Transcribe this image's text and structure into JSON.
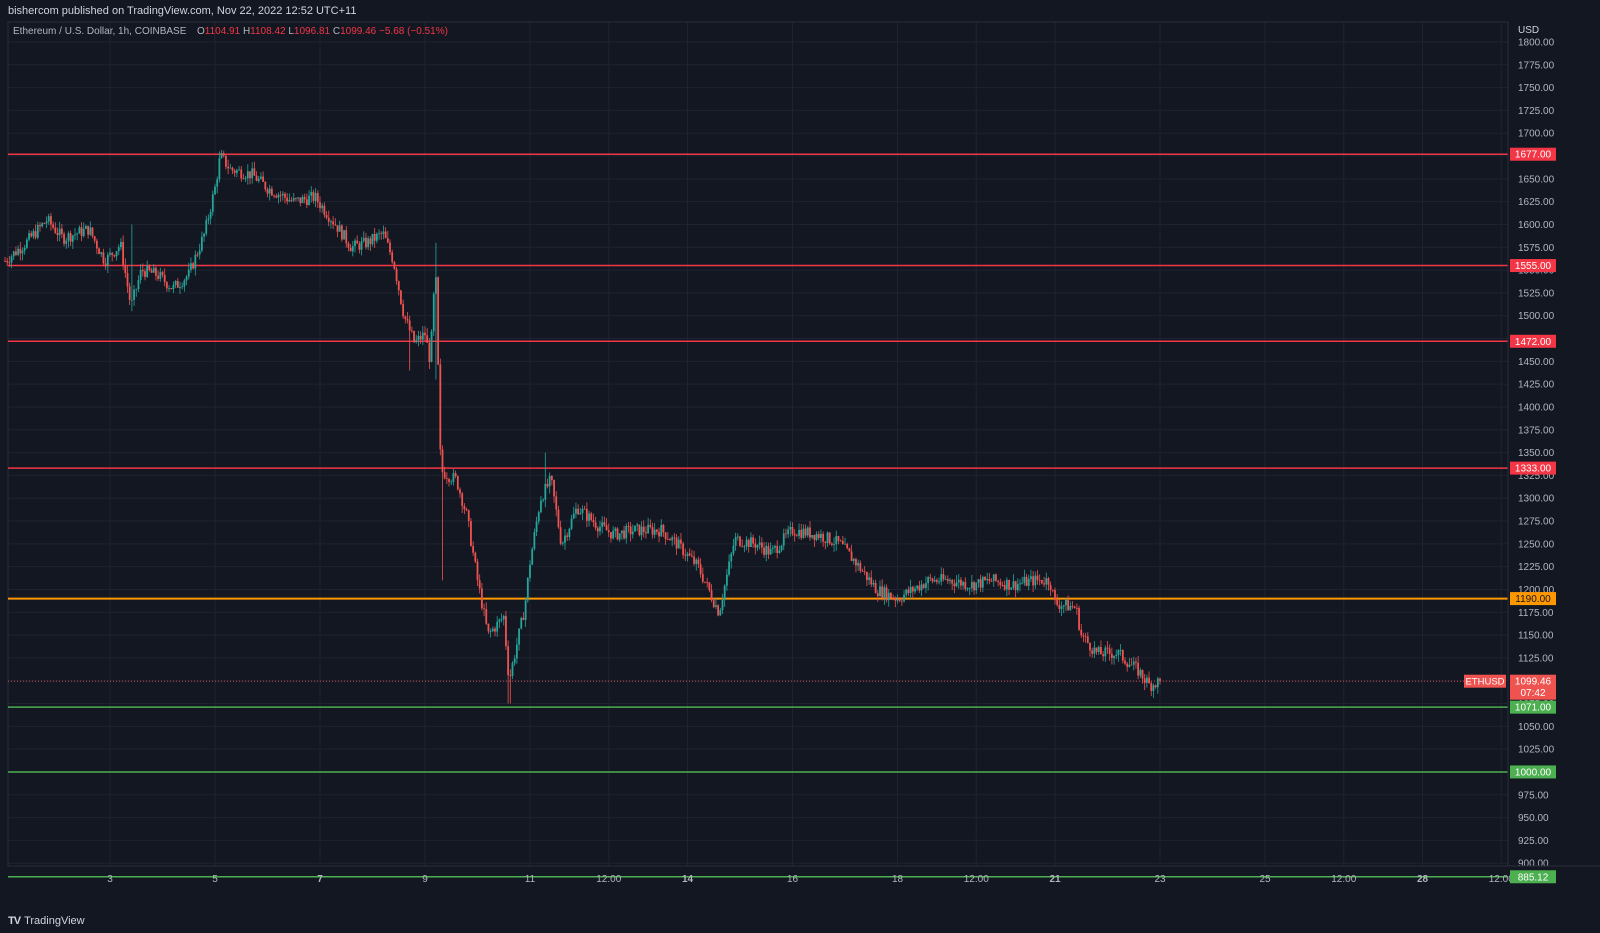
{
  "header": {
    "attribution": "bishercom published on TradingView.com, Nov 22, 2022 12:52 UTC+11"
  },
  "legend": {
    "symbol": "Ethereum / U.S. Dollar, 1h, COINBASE",
    "o_label": "O",
    "o": "1104.91",
    "h_label": "H",
    "h": "1108.42",
    "l_label": "L",
    "l": "1096.81",
    "c_label": "C",
    "c": "1099.46",
    "change": "−5.68 (−0.51%)"
  },
  "footer": {
    "brand": "TradingView",
    "logo_icon": "tradingview-logo-icon"
  },
  "colors": {
    "background": "#131722",
    "up": "#26a69a",
    "down": "#ef5350",
    "resistance": "#f23645",
    "pivot": "#ff9800",
    "support": "#4caf50"
  },
  "chart_data": {
    "type": "candlestick",
    "symbol": "ETHUSD",
    "interval": "1h",
    "currency": "USD",
    "ylim": [
      865,
      1810
    ],
    "y_ticks": [
      875,
      900,
      925,
      950,
      975,
      1000,
      1025,
      1050,
      1075,
      1100,
      1125,
      1150,
      1175,
      1200,
      1225,
      1250,
      1275,
      1300,
      1325,
      1350,
      1375,
      1400,
      1425,
      1450,
      1475,
      1500,
      1525,
      1550,
      1575,
      1600,
      1625,
      1650,
      1675,
      1700,
      1725,
      1750,
      1775,
      1800
    ],
    "y_tick_labels": [
      "875.00",
      "900.00",
      "925.00",
      "950.00",
      "975.00",
      "1000.00",
      "1025.00",
      "1050.00",
      "1075.00",
      "1100.00",
      "1125.00",
      "1150.00",
      "1175.00",
      "1200.00",
      "1225.00",
      "1250.00",
      "1275.00",
      "1300.00",
      "1325.00",
      "1350.00",
      "1375.00",
      "1400.00",
      "1425.00",
      "1450.00",
      "1475.00",
      "1500.00",
      "1525.00",
      "1550.00",
      "1575.00",
      "1600.00",
      "1625.00",
      "1650.00",
      "1675.00",
      "1700.00",
      "1725.00",
      "1750.00",
      "1775.00",
      "1800.00"
    ],
    "x_range_days": [
      1.0,
      30.0
    ],
    "x_ticks": [
      {
        "day": 3.0,
        "label": "3",
        "bold": false
      },
      {
        "day": 5.0,
        "label": "5",
        "bold": false
      },
      {
        "day": 7.0,
        "label": "7",
        "bold": true
      },
      {
        "day": 9.0,
        "label": "9",
        "bold": false
      },
      {
        "day": 11.0,
        "label": "11",
        "bold": false
      },
      {
        "day": 12.5,
        "label": "12:00",
        "bold": false
      },
      {
        "day": 14.0,
        "label": "14",
        "bold": true
      },
      {
        "day": 16.0,
        "label": "16",
        "bold": false
      },
      {
        "day": 18.0,
        "label": "18",
        "bold": false
      },
      {
        "day": 19.5,
        "label": "12:00",
        "bold": false
      },
      {
        "day": 21.0,
        "label": "21",
        "bold": true
      },
      {
        "day": 23.0,
        "label": "23",
        "bold": false
      },
      {
        "day": 25.0,
        "label": "25",
        "bold": false
      },
      {
        "day": 26.5,
        "label": "12:00",
        "bold": false
      },
      {
        "day": 28.0,
        "label": "28",
        "bold": true
      },
      {
        "day": 29.5,
        "label": "12:00",
        "bold": false
      }
    ],
    "price_path": [
      [
        1.0,
        1560
      ],
      [
        1.4,
        1580
      ],
      [
        1.8,
        1605
      ],
      [
        2.1,
        1585
      ],
      [
        2.6,
        1595
      ],
      [
        2.9,
        1560
      ],
      [
        3.2,
        1578
      ],
      [
        3.4,
        1510
      ],
      [
        3.6,
        1550
      ],
      [
        3.9,
        1545
      ],
      [
        4.2,
        1530
      ],
      [
        4.5,
        1545
      ],
      [
        4.8,
        1590
      ],
      [
        5.0,
        1640
      ],
      [
        5.1,
        1675
      ],
      [
        5.3,
        1660
      ],
      [
        5.7,
        1655
      ],
      [
        6.0,
        1640
      ],
      [
        6.5,
        1625
      ],
      [
        6.9,
        1630
      ],
      [
        7.3,
        1600
      ],
      [
        7.6,
        1575
      ],
      [
        7.9,
        1580
      ],
      [
        8.2,
        1590
      ],
      [
        8.4,
        1560
      ],
      [
        8.6,
        1500
      ],
      [
        8.8,
        1470
      ],
      [
        9.0,
        1480
      ],
      [
        9.1,
        1450
      ],
      [
        9.2,
        1555
      ],
      [
        9.3,
        1330
      ],
      [
        9.6,
        1320
      ],
      [
        9.8,
        1280
      ],
      [
        10.0,
        1210
      ],
      [
        10.2,
        1150
      ],
      [
        10.5,
        1170
      ],
      [
        10.6,
        1100
      ],
      [
        10.9,
        1180
      ],
      [
        11.0,
        1230
      ],
      [
        11.2,
        1300
      ],
      [
        11.4,
        1320
      ],
      [
        11.6,
        1250
      ],
      [
        11.9,
        1290
      ],
      [
        12.3,
        1270
      ],
      [
        12.6,
        1260
      ],
      [
        13.0,
        1265
      ],
      [
        13.5,
        1265
      ],
      [
        13.8,
        1250
      ],
      [
        14.2,
        1225
      ],
      [
        14.6,
        1175
      ],
      [
        14.9,
        1255
      ],
      [
        15.3,
        1250
      ],
      [
        15.6,
        1240
      ],
      [
        16.0,
        1265
      ],
      [
        16.5,
        1260
      ],
      [
        16.9,
        1250
      ],
      [
        17.2,
        1230
      ],
      [
        17.6,
        1200
      ],
      [
        18.0,
        1190
      ],
      [
        18.3,
        1200
      ],
      [
        18.6,
        1210
      ],
      [
        19.0,
        1210
      ],
      [
        19.4,
        1205
      ],
      [
        19.8,
        1210
      ],
      [
        20.2,
        1205
      ],
      [
        20.6,
        1210
      ],
      [
        20.9,
        1210
      ],
      [
        21.0,
        1185
      ],
      [
        21.4,
        1180
      ],
      [
        21.5,
        1150
      ],
      [
        21.8,
        1130
      ],
      [
        22.2,
        1130
      ],
      [
        22.6,
        1110
      ],
      [
        22.8,
        1095
      ],
      [
        23.0,
        1099.46
      ]
    ],
    "horizontal_levels": [
      {
        "value": 1677,
        "label": "1677.00",
        "kind": "resistance"
      },
      {
        "value": 1555,
        "label": "1555.00",
        "kind": "resistance"
      },
      {
        "value": 1472,
        "label": "1472.00",
        "kind": "resistance"
      },
      {
        "value": 1333,
        "label": "1333.00",
        "kind": "resistance"
      },
      {
        "value": 1190,
        "label": "1190.00",
        "kind": "pivot"
      },
      {
        "value": 1071,
        "label": "1071.00",
        "kind": "support"
      },
      {
        "value": 1000,
        "label": "1000.00",
        "kind": "support"
      },
      {
        "value": 885.12,
        "label": "885.12",
        "kind": "support"
      }
    ],
    "last_price": {
      "value": 1099.46,
      "label": "1099.46",
      "symbol_tag": "ETHUSD",
      "countdown": "07:42"
    },
    "axis_currency_label": "USD"
  }
}
